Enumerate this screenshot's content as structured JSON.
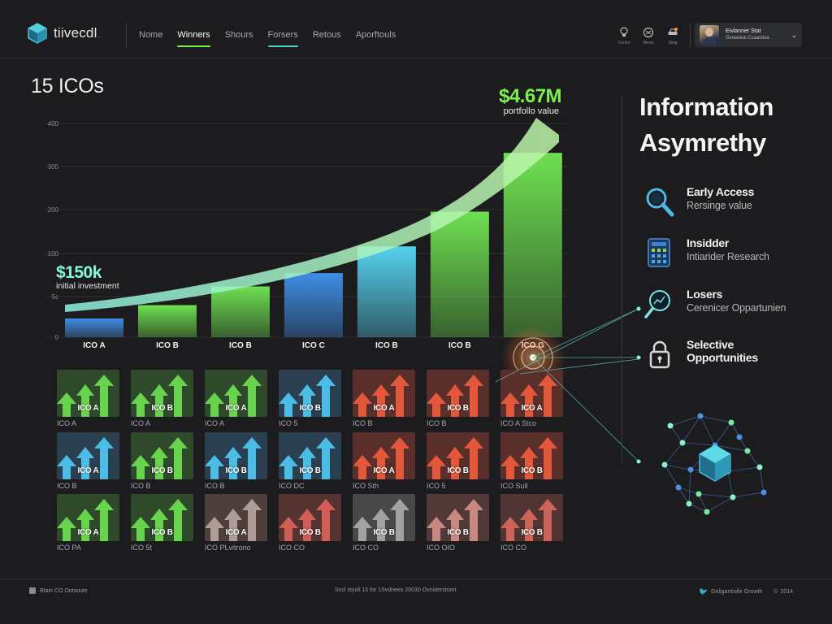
{
  "app": {
    "logo_text": "tiivecdl",
    "logo_suffix": "...",
    "accent_green": "#7cf04f",
    "accent_cyan": "#55e0d0"
  },
  "nav": {
    "links": [
      {
        "label": "Nome",
        "active": false
      },
      {
        "label": "Winners",
        "active": true,
        "underline_color": "#7cf04f"
      },
      {
        "label": "Shours",
        "active": false
      },
      {
        "label": "Forsers",
        "active": false,
        "underline_color": "#4fd6c6"
      },
      {
        "label": "Retous",
        "active": false
      },
      {
        "label": "Aporftouls",
        "active": false
      }
    ],
    "icons": [
      {
        "name": "lightbulb-icon",
        "label": "Conist"
      },
      {
        "name": "globe-icon",
        "label": "Meois"
      },
      {
        "name": "car-icon",
        "label": "Sbilg"
      }
    ],
    "user": {
      "name": "Eivlanner Stat",
      "subtitle": "Gvraeleai Ccaacleia"
    }
  },
  "chart": {
    "title": "15 ICOs",
    "final_value": "$4.67M",
    "final_label": "portfollo value",
    "initial_value": "$150k",
    "initial_label": "initial investment"
  },
  "chart_data": {
    "type": "bar",
    "title": "15 ICOs",
    "categories": [
      "ICO A",
      "ICO B",
      "ICO B",
      "ICO C",
      "ICO B",
      "ICO B",
      "ICO G"
    ],
    "values": [
      35,
      60,
      95,
      120,
      170,
      235,
      345
    ],
    "bar_colors": [
      "#3f8ee6",
      "#6ee050",
      "#6ee050",
      "#3f8ee6",
      "#55d2ee",
      "#6ee050",
      "#6ee050"
    ],
    "yticks": [
      "0",
      "5c",
      "100",
      "200",
      "305",
      "400"
    ],
    "ylim": [
      0,
      400
    ],
    "grid": true,
    "legend": "none"
  },
  "tiles": {
    "rows": [
      [
        {
          "label": "ICO A",
          "caption": "ICO A",
          "color": "#6ee050",
          "bg": "#2f4a2a"
        },
        {
          "label": "ICO B",
          "caption": "ICO A",
          "color": "#6ee050",
          "bg": "#2f4a2a"
        },
        {
          "label": "ICO A",
          "caption": "ICO A",
          "color": "#6ee050",
          "bg": "#2f4a2a"
        },
        {
          "label": "ICO B",
          "caption": "ICO 5",
          "color": "#4ec7f2",
          "bg": "#2a4050"
        },
        {
          "label": "ICO A",
          "caption": "ICO B",
          "color": "#ef5b3c",
          "bg": "#5a2e2a"
        },
        {
          "label": "ICO B",
          "caption": "ICO B",
          "color": "#ef5b3c",
          "bg": "#5a2e2a"
        },
        {
          "label": "ICO A",
          "caption": "ICO A Stco",
          "color": "#ef5b3c",
          "bg": "#5a2e2a"
        }
      ],
      [
        {
          "label": "ICO A",
          "caption": "ICO B",
          "color": "#4ec7f2",
          "bg": "#2a4050"
        },
        {
          "label": "ICO B",
          "caption": "ICO B",
          "color": "#6ee050",
          "bg": "#2f4a2a"
        },
        {
          "label": "ICO B",
          "caption": "ICO B",
          "color": "#4ec7f2",
          "bg": "#2a4050"
        },
        {
          "label": "ICO B",
          "caption": "ICO DC",
          "color": "#4ec7f2",
          "bg": "#2a4050"
        },
        {
          "label": "ICO A",
          "caption": "ICO Sth",
          "color": "#ef5b3c",
          "bg": "#5a2e2a"
        },
        {
          "label": "ICO B",
          "caption": "ICO 5",
          "color": "#ef5b3c",
          "bg": "#5a2e2a"
        },
        {
          "label": "ICO B",
          "caption": "ICO Sull",
          "color": "#ef5b3c",
          "bg": "#5a2e2a"
        }
      ],
      [
        {
          "label": "ICO A",
          "caption": "ICO PA",
          "color": "#6ee050",
          "bg": "#2f4a2a"
        },
        {
          "label": "ICO B",
          "caption": "ICO 5t",
          "color": "#6ee050",
          "bg": "#2f4a2a"
        },
        {
          "label": "ICO A",
          "caption": "ICO PLvitrono",
          "color": "#b8a49e",
          "bg": "#4e3f3d"
        },
        {
          "label": "ICO B",
          "caption": "ICO CO",
          "color": "#d9625a",
          "bg": "#553330"
        },
        {
          "label": "ICO B",
          "caption": "ICO CO",
          "color": "#aaaaaa",
          "bg": "#484848"
        },
        {
          "label": "ICO B",
          "caption": "ICO OIO",
          "color": "#d18f86",
          "bg": "#503936"
        },
        {
          "label": "ICO B",
          "caption": "ICO CO",
          "color": "#d7685c",
          "bg": "#503432"
        }
      ]
    ]
  },
  "info": {
    "title_line1": "Information",
    "title_line2": "Asymrethy",
    "features": [
      {
        "icon": "magnifier-icon",
        "title": "Early Access",
        "subtitle": "Rersinge value"
      },
      {
        "icon": "calculator-icon",
        "title": "Insidder",
        "subtitle": "Intiarider Research"
      },
      {
        "icon": "search-chart-icon",
        "title": "Losers",
        "subtitle": "Cerenicer Oppartunien"
      },
      {
        "icon": "padlock-icon",
        "title": "Selective",
        "subtitle": "Opportunities"
      }
    ]
  },
  "footer": {
    "left": "Btain CO Ootsoute",
    "middle": "Sncl styoll 15 for 1Svdnees 20030 Ovniderstomt",
    "right_1": "Geligantiolle Growth",
    "right_2": "2014"
  }
}
